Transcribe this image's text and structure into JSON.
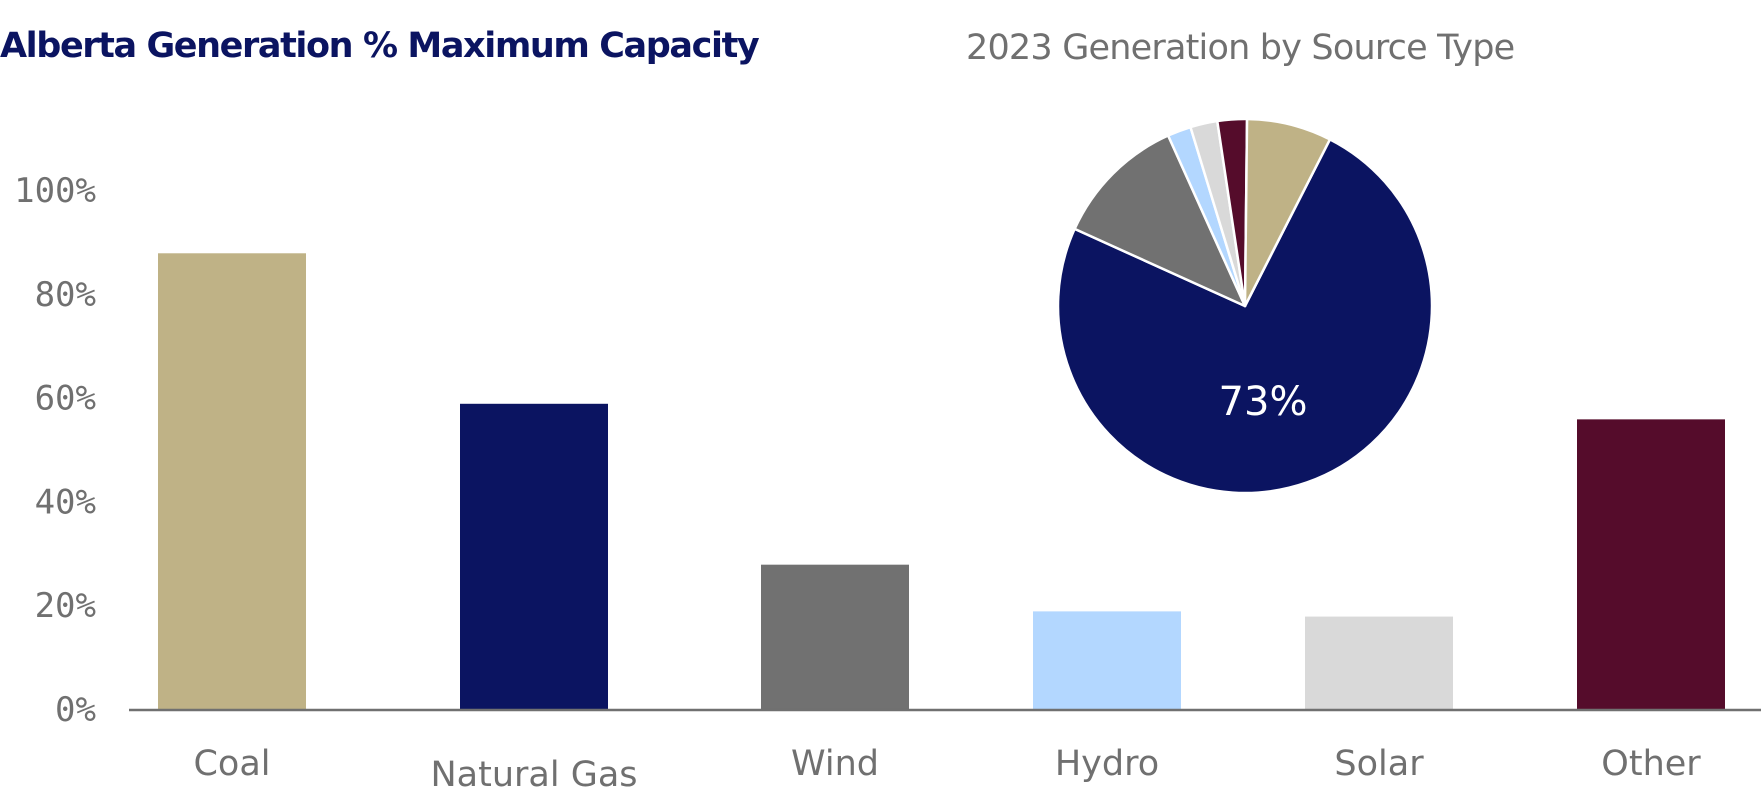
{
  "title": "Alberta Generation % Maximum Capacity",
  "pie_title": "2023 Generation by Source Type",
  "chart_data": [
    {
      "type": "bar",
      "title": "Alberta Generation % Maximum Capacity",
      "categories": [
        "Coal",
        "Natural Gas",
        "Wind",
        "Hydro",
        "Solar",
        "Other"
      ],
      "values": [
        88,
        59,
        28,
        19,
        18,
        56
      ],
      "colors": [
        "#bfb286",
        "#0b1461",
        "#717171",
        "#b3d7ff",
        "#d9d9d9",
        "#550c2b"
      ],
      "ylim": [
        0,
        100
      ],
      "yticks": [
        "0%",
        "20%",
        "40%",
        "60%",
        "80%",
        "100%"
      ],
      "grid": false,
      "xlabel": "",
      "ylabel": ""
    },
    {
      "type": "pie",
      "title": "2023 Generation by Source Type",
      "categories": [
        "Natural Gas",
        "Wind",
        "Hydro",
        "Solar",
        "Other",
        "Coal"
      ],
      "values": [
        73,
        11.3,
        2,
        2.3,
        2.5,
        7.2
      ],
      "colors": [
        "#0b1461",
        "#717171",
        "#b3d7ff",
        "#d9d9d9",
        "#550c2b",
        "#bfb286"
      ],
      "data_labels": [
        "73%",
        "",
        "",
        "",
        "",
        ""
      ]
    }
  ]
}
